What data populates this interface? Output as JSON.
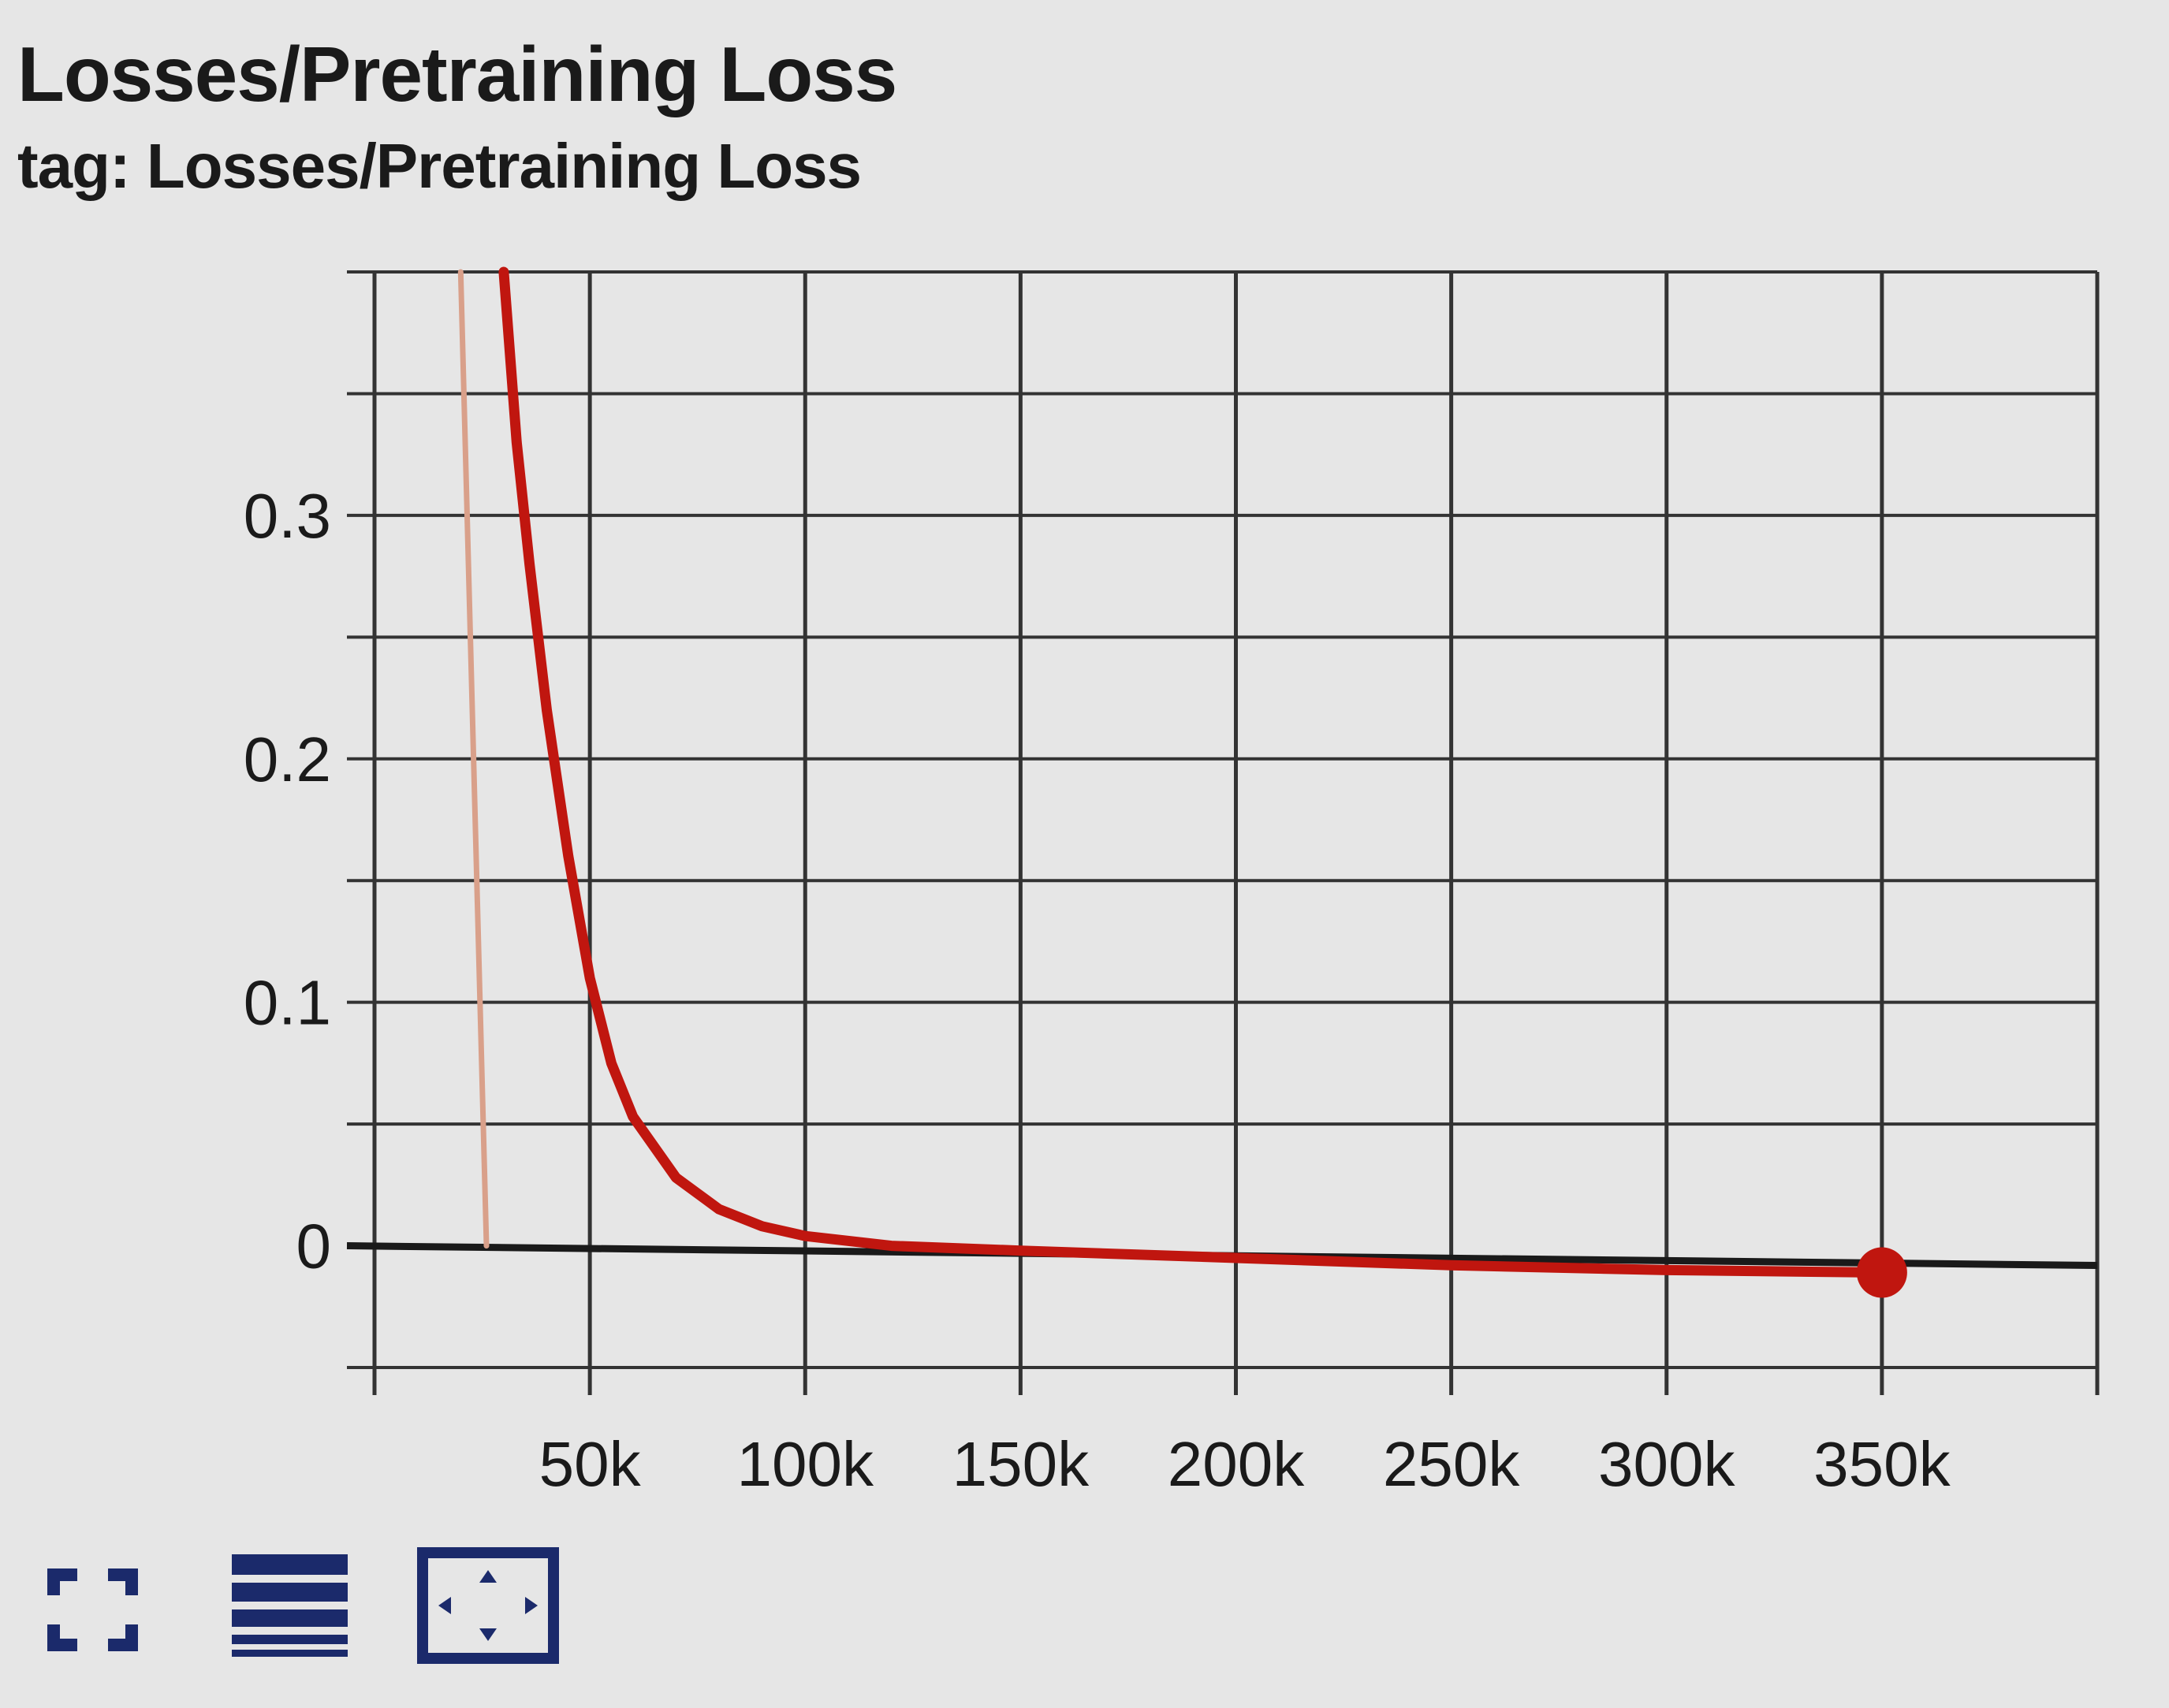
{
  "header": {
    "title": "Losses/Pretraining Loss",
    "subtitle": "tag: Losses/Pretraining Loss"
  },
  "toolbar": {
    "expand_icon": "fullscreen-icon",
    "data_icon": "data-table-icon",
    "fit_icon": "fit-domain-icon"
  },
  "colors": {
    "background": "#e6e6e6",
    "grid": "#333333",
    "raw_series": "#d9a08a",
    "smoothed_series": "#c0160f",
    "icon": "#1b2a6b"
  },
  "chart_data": {
    "type": "line",
    "title": "Losses/Pretraining Loss",
    "xlabel": "",
    "ylabel": "",
    "xlim": [
      0,
      400000
    ],
    "ylim": [
      -0.05,
      0.4
    ],
    "grid": true,
    "x_ticks": [
      50000,
      100000,
      150000,
      200000,
      250000,
      300000,
      350000
    ],
    "x_tick_labels": [
      "50k",
      "100k",
      "150k",
      "200k",
      "250k",
      "300k",
      "350k"
    ],
    "y_ticks": [
      0,
      0.1,
      0.2,
      0.3
    ],
    "y_tick_labels": [
      "0",
      "0.1",
      "0.2",
      "0.3"
    ],
    "series": [
      {
        "role": "raw",
        "x": [
          20000,
          26000
        ],
        "y": [
          0.4,
          0.0
        ]
      },
      {
        "role": "smoothed",
        "x": [
          30000,
          33000,
          36000,
          40000,
          45000,
          50000,
          55000,
          60000,
          70000,
          80000,
          90000,
          100000,
          120000,
          150000,
          200000,
          250000,
          300000,
          350000
        ],
        "y": [
          0.4,
          0.33,
          0.28,
          0.22,
          0.16,
          0.11,
          0.075,
          0.053,
          0.028,
          0.015,
          0.008,
          0.004,
          0.0,
          -0.002,
          -0.005,
          -0.008,
          -0.01,
          -0.011
        ]
      }
    ],
    "marker": {
      "x": 350000,
      "y": -0.011
    }
  }
}
